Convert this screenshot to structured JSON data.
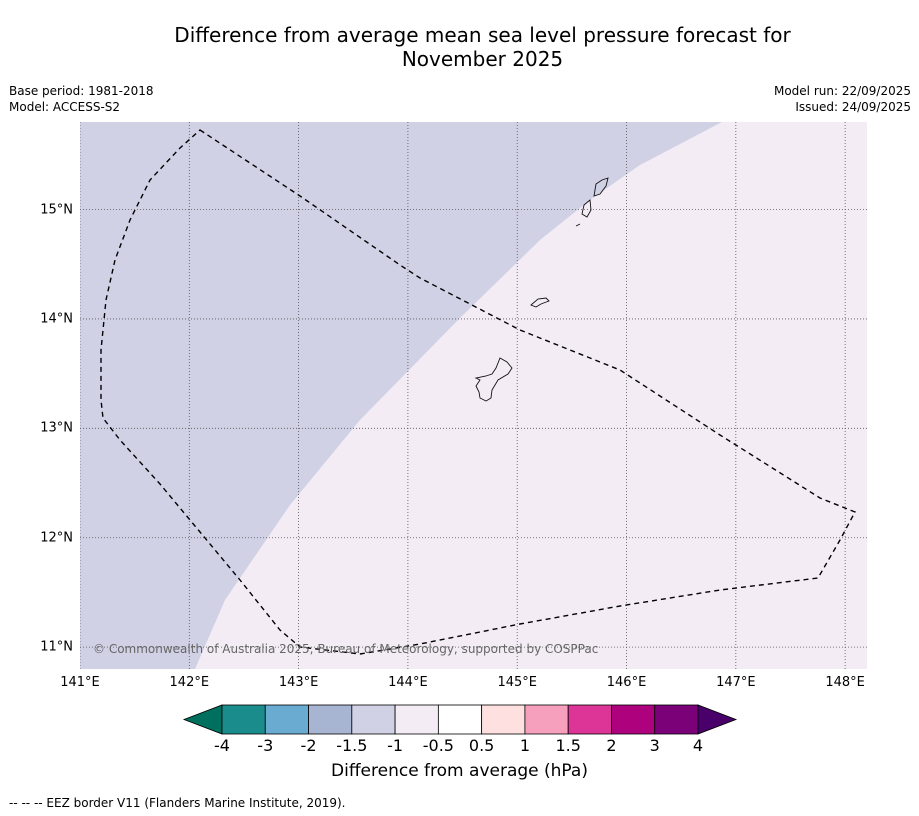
{
  "title_line1": "Difference from average mean sea level pressure forecast for",
  "title_line2": "November 2025",
  "meta": {
    "base_period": "Base period: 1981-2018",
    "model": "Model: ACCESS-S2",
    "model_run": "Model run: 22/09/2025",
    "issued": "Issued: 24/09/2025"
  },
  "map": {
    "lon_labels": [
      "141°E",
      "142°E",
      "143°E",
      "144°E",
      "145°E",
      "146°E",
      "147°E",
      "148°E"
    ],
    "lat_labels": [
      "15°N",
      "14°N",
      "13°N",
      "12°N",
      "11°N"
    ],
    "lon_range": [
      141,
      148.2
    ],
    "lat_range": [
      10.8,
      15.8
    ],
    "field_colors": {
      "neg_1_5_to_neg_1": "#d0d1e5",
      "neg_1_to_neg_0_5": "#f3ecf5"
    },
    "copyright": "© Commonwealth of Australia 2025, Bureau of Meteorology, supported by COSPPac"
  },
  "colorbar": {
    "ticks": [
      "-4",
      "-3",
      "-2",
      "-1.5",
      "-1",
      "-0.5",
      "0.5",
      "1",
      "1.5",
      "2",
      "3",
      "4"
    ],
    "colors": [
      "#1a8c8c",
      "#6aabd2",
      "#a7b5d3",
      "#d0d1e5",
      "#f3ecf5",
      "#ffffff",
      "#fee0e0",
      "#f7a0bd",
      "#dd3497",
      "#ae017e",
      "#7a0177"
    ],
    "under_color": "#00705e",
    "over_color": "#49006a",
    "label": "Difference from average (hPa)"
  },
  "footnote": "--  --  -- EEZ border V11 (Flanders Marine Institute, 2019)."
}
